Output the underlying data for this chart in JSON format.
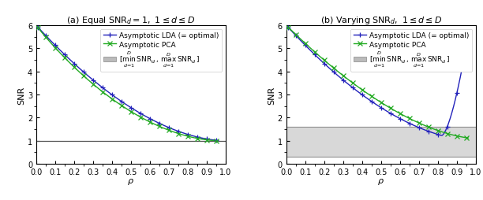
{
  "title_a": "(a) Equal $\\mathrm{SNR}_d = 1,\\ 1 \\leq d \\leq D$",
  "title_b": "(b) Varying $\\mathrm{SNR}_d,\\ 1 \\leq d \\leq D$",
  "xlabel": "$\\rho$",
  "ylabel": "SNR",
  "ylim": [
    0,
    6
  ],
  "xlim": [
    0,
    1
  ],
  "xticks": [
    0,
    0.1,
    0.2,
    0.3,
    0.4,
    0.5,
    0.6,
    0.7,
    0.8,
    0.9,
    1
  ],
  "yticks": [
    0,
    1,
    2,
    3,
    4,
    5,
    6
  ],
  "lda_color": "#2222bb",
  "pca_color": "#22aa22",
  "hline_color": "#555555",
  "band_color": "#d8d8d8",
  "band_edge_color": "#888888",
  "panel_a_hline": 1.0,
  "panel_b_band_low": 0.3,
  "panel_b_band_high": 1.6,
  "legend_lda": "Asymptotic LDA (= optimal)",
  "legend_pca": "Asymptotic PCA",
  "legend_band_1": "$[\\min_{d=1}^{D}$",
  "legend_band_2": "$\\mathrm{SNR}_d, \\max_{d=1}^{D}\\,\\mathrm{SNR}_d]$",
  "linewidth": 1.0,
  "markersize": 4,
  "tick_fontsize": 7,
  "label_fontsize": 8,
  "title_fontsize": 8,
  "legend_fontsize": 6.5
}
